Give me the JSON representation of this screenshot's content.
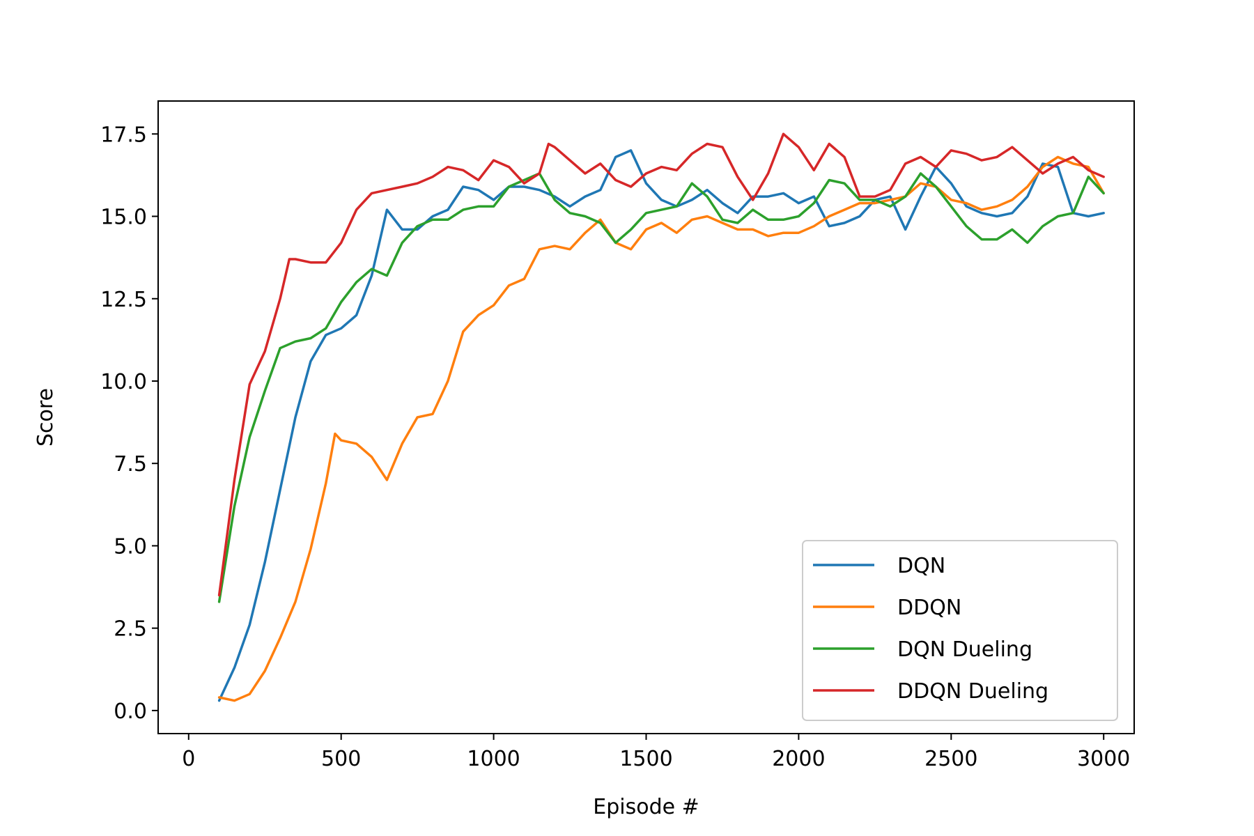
{
  "chart_data": {
    "type": "line",
    "title": "",
    "xlabel": "Episode #",
    "ylabel": "Score",
    "xlim": [
      -100,
      3100
    ],
    "ylim": [
      -0.7,
      18.5
    ],
    "xticks": [
      0,
      500,
      1000,
      1500,
      2000,
      2500,
      3000
    ],
    "xtick_labels": [
      "0",
      "500",
      "1000",
      "1500",
      "2000",
      "2500",
      "3000"
    ],
    "yticks": [
      0.0,
      2.5,
      5.0,
      7.5,
      10.0,
      12.5,
      15.0,
      17.5
    ],
    "ytick_labels": [
      "0.0",
      "2.5",
      "5.0",
      "7.5",
      "10.0",
      "12.5",
      "15.0",
      "17.5"
    ],
    "grid": false,
    "legend_position": "lower-right",
    "colors": {
      "DQN": "#1f77b4",
      "DDQN": "#ff7f0e",
      "DQN Dueling": "#2ca02c",
      "DDQN Dueling": "#d62728"
    },
    "series": [
      {
        "name": "DQN",
        "color": "#1f77b4",
        "points": [
          [
            100,
            0.3
          ],
          [
            150,
            1.3
          ],
          [
            200,
            2.6
          ],
          [
            250,
            4.5
          ],
          [
            300,
            6.7
          ],
          [
            350,
            8.9
          ],
          [
            400,
            10.6
          ],
          [
            450,
            11.4
          ],
          [
            500,
            11.6
          ],
          [
            550,
            12.0
          ],
          [
            600,
            13.2
          ],
          [
            650,
            15.2
          ],
          [
            700,
            14.6
          ],
          [
            750,
            14.6
          ],
          [
            800,
            15.0
          ],
          [
            850,
            15.2
          ],
          [
            900,
            15.9
          ],
          [
            950,
            15.8
          ],
          [
            1000,
            15.5
          ],
          [
            1050,
            15.9
          ],
          [
            1100,
            15.9
          ],
          [
            1150,
            15.8
          ],
          [
            1200,
            15.6
          ],
          [
            1250,
            15.3
          ],
          [
            1300,
            15.6
          ],
          [
            1350,
            15.8
          ],
          [
            1400,
            16.8
          ],
          [
            1450,
            17.0
          ],
          [
            1500,
            16.0
          ],
          [
            1550,
            15.5
          ],
          [
            1600,
            15.3
          ],
          [
            1650,
            15.5
          ],
          [
            1700,
            15.8
          ],
          [
            1750,
            15.4
          ],
          [
            1800,
            15.1
          ],
          [
            1850,
            15.6
          ],
          [
            1900,
            15.6
          ],
          [
            1950,
            15.7
          ],
          [
            2000,
            15.4
          ],
          [
            2050,
            15.6
          ],
          [
            2100,
            14.7
          ],
          [
            2150,
            14.8
          ],
          [
            2200,
            15.0
          ],
          [
            2250,
            15.5
          ],
          [
            2300,
            15.6
          ],
          [
            2350,
            14.6
          ],
          [
            2400,
            15.6
          ],
          [
            2450,
            16.5
          ],
          [
            2500,
            16.0
          ],
          [
            2550,
            15.3
          ],
          [
            2600,
            15.1
          ],
          [
            2650,
            15.0
          ],
          [
            2700,
            15.1
          ],
          [
            2750,
            15.6
          ],
          [
            2800,
            16.6
          ],
          [
            2850,
            16.5
          ],
          [
            2900,
            15.1
          ],
          [
            2950,
            15.0
          ],
          [
            3000,
            15.1
          ]
        ]
      },
      {
        "name": "DDQN",
        "color": "#ff7f0e",
        "points": [
          [
            100,
            0.4
          ],
          [
            150,
            0.3
          ],
          [
            200,
            0.5
          ],
          [
            250,
            1.2
          ],
          [
            300,
            2.2
          ],
          [
            350,
            3.3
          ],
          [
            400,
            4.9
          ],
          [
            450,
            6.9
          ],
          [
            480,
            8.4
          ],
          [
            500,
            8.2
          ],
          [
            550,
            8.1
          ],
          [
            600,
            7.7
          ],
          [
            650,
            7.0
          ],
          [
            700,
            8.1
          ],
          [
            750,
            8.9
          ],
          [
            800,
            9.0
          ],
          [
            850,
            10.0
          ],
          [
            900,
            11.5
          ],
          [
            950,
            12.0
          ],
          [
            1000,
            12.3
          ],
          [
            1050,
            12.9
          ],
          [
            1100,
            13.1
          ],
          [
            1150,
            14.0
          ],
          [
            1200,
            14.1
          ],
          [
            1250,
            14.0
          ],
          [
            1300,
            14.5
          ],
          [
            1350,
            14.9
          ],
          [
            1400,
            14.2
          ],
          [
            1450,
            14.0
          ],
          [
            1500,
            14.6
          ],
          [
            1550,
            14.8
          ],
          [
            1600,
            14.5
          ],
          [
            1650,
            14.9
          ],
          [
            1700,
            15.0
          ],
          [
            1750,
            14.8
          ],
          [
            1800,
            14.6
          ],
          [
            1850,
            14.6
          ],
          [
            1900,
            14.4
          ],
          [
            1950,
            14.5
          ],
          [
            2000,
            14.5
          ],
          [
            2050,
            14.7
          ],
          [
            2100,
            15.0
          ],
          [
            2150,
            15.2
          ],
          [
            2200,
            15.4
          ],
          [
            2250,
            15.4
          ],
          [
            2300,
            15.5
          ],
          [
            2350,
            15.6
          ],
          [
            2400,
            16.0
          ],
          [
            2450,
            15.9
          ],
          [
            2500,
            15.5
          ],
          [
            2550,
            15.4
          ],
          [
            2600,
            15.2
          ],
          [
            2650,
            15.3
          ],
          [
            2700,
            15.5
          ],
          [
            2750,
            15.9
          ],
          [
            2800,
            16.5
          ],
          [
            2850,
            16.8
          ],
          [
            2900,
            16.6
          ],
          [
            2950,
            16.5
          ],
          [
            3000,
            15.7
          ]
        ]
      },
      {
        "name": "DQN Dueling",
        "color": "#2ca02c",
        "points": [
          [
            100,
            3.3
          ],
          [
            150,
            6.2
          ],
          [
            200,
            8.3
          ],
          [
            250,
            9.7
          ],
          [
            300,
            11.0
          ],
          [
            350,
            11.2
          ],
          [
            400,
            11.3
          ],
          [
            450,
            11.6
          ],
          [
            500,
            12.4
          ],
          [
            550,
            13.0
          ],
          [
            600,
            13.4
          ],
          [
            650,
            13.2
          ],
          [
            700,
            14.2
          ],
          [
            750,
            14.7
          ],
          [
            800,
            14.9
          ],
          [
            850,
            14.9
          ],
          [
            900,
            15.2
          ],
          [
            950,
            15.3
          ],
          [
            1000,
            15.3
          ],
          [
            1050,
            15.9
          ],
          [
            1100,
            16.1
          ],
          [
            1150,
            16.3
          ],
          [
            1200,
            15.5
          ],
          [
            1250,
            15.1
          ],
          [
            1300,
            15.0
          ],
          [
            1350,
            14.8
          ],
          [
            1400,
            14.2
          ],
          [
            1450,
            14.6
          ],
          [
            1500,
            15.1
          ],
          [
            1550,
            15.2
          ],
          [
            1600,
            15.3
          ],
          [
            1650,
            16.0
          ],
          [
            1700,
            15.6
          ],
          [
            1750,
            14.9
          ],
          [
            1800,
            14.8
          ],
          [
            1850,
            15.2
          ],
          [
            1900,
            14.9
          ],
          [
            1950,
            14.9
          ],
          [
            2000,
            15.0
          ],
          [
            2050,
            15.4
          ],
          [
            2100,
            16.1
          ],
          [
            2150,
            16.0
          ],
          [
            2200,
            15.5
          ],
          [
            2250,
            15.5
          ],
          [
            2300,
            15.3
          ],
          [
            2350,
            15.6
          ],
          [
            2400,
            16.3
          ],
          [
            2450,
            15.9
          ],
          [
            2500,
            15.3
          ],
          [
            2550,
            14.7
          ],
          [
            2600,
            14.3
          ],
          [
            2650,
            14.3
          ],
          [
            2700,
            14.6
          ],
          [
            2750,
            14.2
          ],
          [
            2800,
            14.7
          ],
          [
            2850,
            15.0
          ],
          [
            2900,
            15.1
          ],
          [
            2950,
            16.2
          ],
          [
            3000,
            15.7
          ]
        ]
      },
      {
        "name": "DDQN Dueling",
        "color": "#d62728",
        "points": [
          [
            100,
            3.5
          ],
          [
            150,
            7.0
          ],
          [
            200,
            9.9
          ],
          [
            250,
            10.9
          ],
          [
            300,
            12.5
          ],
          [
            330,
            13.7
          ],
          [
            350,
            13.7
          ],
          [
            400,
            13.6
          ],
          [
            450,
            13.6
          ],
          [
            500,
            14.2
          ],
          [
            550,
            15.2
          ],
          [
            600,
            15.7
          ],
          [
            650,
            15.8
          ],
          [
            700,
            15.9
          ],
          [
            750,
            16.0
          ],
          [
            800,
            16.2
          ],
          [
            850,
            16.5
          ],
          [
            900,
            16.4
          ],
          [
            950,
            16.1
          ],
          [
            1000,
            16.7
          ],
          [
            1050,
            16.5
          ],
          [
            1100,
            16.0
          ],
          [
            1150,
            16.3
          ],
          [
            1180,
            17.2
          ],
          [
            1200,
            17.1
          ],
          [
            1250,
            16.7
          ],
          [
            1300,
            16.3
          ],
          [
            1350,
            16.6
          ],
          [
            1400,
            16.1
          ],
          [
            1450,
            15.9
          ],
          [
            1500,
            16.3
          ],
          [
            1550,
            16.5
          ],
          [
            1600,
            16.4
          ],
          [
            1650,
            16.9
          ],
          [
            1700,
            17.2
          ],
          [
            1750,
            17.1
          ],
          [
            1800,
            16.2
          ],
          [
            1850,
            15.5
          ],
          [
            1900,
            16.3
          ],
          [
            1950,
            17.5
          ],
          [
            2000,
            17.1
          ],
          [
            2050,
            16.4
          ],
          [
            2100,
            17.2
          ],
          [
            2150,
            16.8
          ],
          [
            2200,
            15.6
          ],
          [
            2250,
            15.6
          ],
          [
            2300,
            15.8
          ],
          [
            2350,
            16.6
          ],
          [
            2400,
            16.8
          ],
          [
            2450,
            16.5
          ],
          [
            2500,
            17.0
          ],
          [
            2550,
            16.9
          ],
          [
            2600,
            16.7
          ],
          [
            2650,
            16.8
          ],
          [
            2700,
            17.1
          ],
          [
            2750,
            16.7
          ],
          [
            2800,
            16.3
          ],
          [
            2850,
            16.6
          ],
          [
            2900,
            16.8
          ],
          [
            2950,
            16.4
          ],
          [
            3000,
            16.2
          ]
        ]
      }
    ]
  }
}
